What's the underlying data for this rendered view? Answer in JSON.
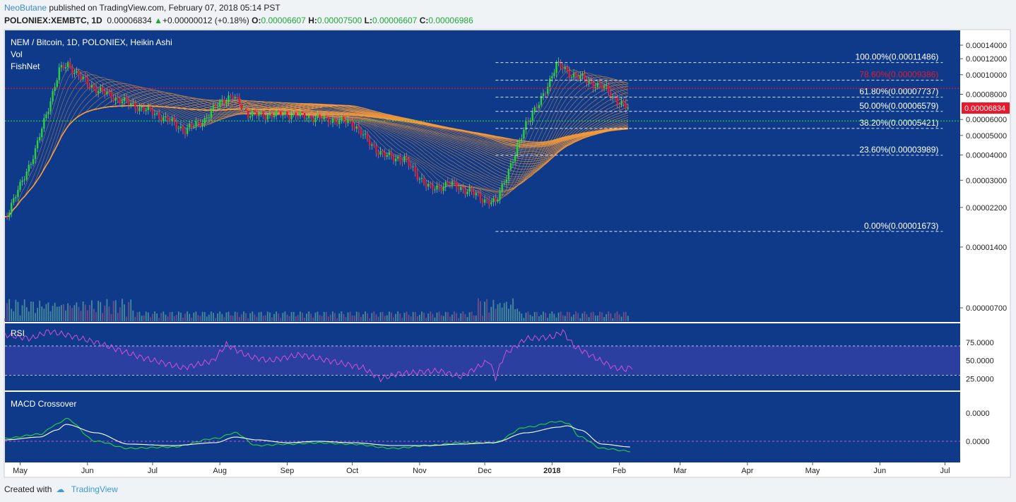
{
  "header": {
    "author": "NeoButane",
    "published_text": " published on TradingView.com, February 07, 2018 05:14 PST",
    "symbol": "POLONIEX:XEMBTC, 1D",
    "last_price": "0.00006834",
    "change_arrow": "▲",
    "change": "+0.00000012 (+0.18%)",
    "o_label": "O:",
    "o_value": "0.00006607",
    "h_label": "H:",
    "h_value": "0.00007500",
    "l_label": "L:",
    "l_value": "0.00006607",
    "c_label": "C:",
    "c_value": "0.00006986"
  },
  "legend": {
    "title": "NEM / Bitcoin, 1D, POLONIEX, Heikin Ashi",
    "vol": "Vol",
    "fishnet": "FishNet",
    "rsi": "RSI",
    "macd": "MACD Crossover"
  },
  "footer": {
    "created_with": "Created with",
    "brand": "TradingView"
  },
  "colors": {
    "pane_bg": "#0f3a8a",
    "up": "#2ad23a",
    "down": "#e8192c",
    "ribbon": "#f59a3a",
    "rsi_line": "#d24fd8",
    "rsi_band": "#2a3fa0",
    "macd_line": "#2ad23a",
    "signal_line": "#ffffff",
    "resistance": "#e8192c",
    "support": "#2ad23a",
    "price_tag": "#e8192c"
  },
  "chart_data": [
    {
      "type": "candlestick",
      "title": "NEM / Bitcoin, 1D, POLONIEX, Heikin Ashi",
      "scale": "log",
      "x_labels": [
        "May",
        "Jun",
        "Jul",
        "Aug",
        "Sep",
        "Oct",
        "Nov",
        "Dec",
        "2018",
        "Feb",
        "Mar",
        "Apr",
        "May",
        "Jun",
        "Jul"
      ],
      "y_ticks": [
        "0.00014000",
        "0.00012000",
        "0.00010000",
        "0.00008000",
        "0.00006000",
        "0.00005000",
        "0.00004000",
        "0.00003000",
        "0.00002200",
        "0.00001400",
        "0.00000700"
      ],
      "y_tick_values": [
        0.00014,
        0.00012,
        0.0001,
        8e-05,
        6e-05,
        5e-05,
        4e-05,
        3e-05,
        2.2e-05,
        1.4e-05,
        7e-06
      ],
      "price_series": {
        "x": [
          "2017-04-24",
          "2017-05-01",
          "2017-05-08",
          "2017-05-15",
          "2017-05-19",
          "2017-05-23",
          "2017-06-01",
          "2017-06-10",
          "2017-06-20",
          "2017-07-01",
          "2017-07-10",
          "2017-07-16",
          "2017-07-25",
          "2017-08-02",
          "2017-08-07",
          "2017-08-14",
          "2017-08-20",
          "2017-09-01",
          "2017-09-10",
          "2017-09-20",
          "2017-10-01",
          "2017-10-08",
          "2017-10-15",
          "2017-10-25",
          "2017-11-01",
          "2017-11-06",
          "2017-11-15",
          "2017-11-25",
          "2017-12-01",
          "2017-12-06",
          "2017-12-10",
          "2017-12-15",
          "2017-12-20",
          "2017-12-26",
          "2018-01-03",
          "2018-01-06",
          "2018-01-10",
          "2018-01-15",
          "2018-01-20",
          "2018-01-26",
          "2018-02-01",
          "2018-02-05"
        ],
        "close": [
          1.95e-05,
          2.8e-05,
          4.2e-05,
          7.5e-05,
          0.000105,
          0.000112,
          9e-05,
          8e-05,
          7.2e-05,
          6.5e-05,
          5.8e-05,
          5.3e-05,
          6e-05,
          7.5e-05,
          7.8e-05,
          6.4e-05,
          6.3e-05,
          6.4e-05,
          6.2e-05,
          6e-05,
          5.8e-05,
          4.7e-05,
          4e-05,
          3.8e-05,
          3.1e-05,
          2.7e-05,
          2.9e-05,
          2.6e-05,
          2.4e-05,
          2.3e-05,
          3e-05,
          4e-05,
          5.8e-05,
          7.1e-05,
          0.000112,
          0.000108,
          0.0001,
          9.6e-05,
          9e-05,
          8.5e-05,
          7.2e-05,
          6.8e-05
        ]
      },
      "fibonacci": [
        {
          "level": "100.00%",
          "value": "0.00011486"
        },
        {
          "level": "78.60%",
          "value": "0.00009386"
        },
        {
          "level": "61.80%",
          "value": "0.00007737"
        },
        {
          "level": "50.00%",
          "value": "0.00006579"
        },
        {
          "level": "38.20%",
          "value": "0.00005421"
        },
        {
          "level": "23.60%",
          "value": "0.00003989"
        },
        {
          "level": "0.00%",
          "value": "0.00001673"
        }
      ],
      "resistance_line": 8.55e-05,
      "support_line": 5.9e-05,
      "current_price_label": "0.00006834",
      "current_price": 6.834e-05
    },
    {
      "type": "line",
      "name": "RSI",
      "y_ticks": [
        "75.0000",
        "50.0000",
        "25.0000"
      ],
      "y_tick_values": [
        75,
        50,
        25
      ],
      "band": [
        30,
        70
      ],
      "x": [
        "2017-04-24",
        "2017-05-06",
        "2017-05-14",
        "2017-05-21",
        "2017-06-05",
        "2017-06-25",
        "2017-07-15",
        "2017-07-29",
        "2017-08-04",
        "2017-08-14",
        "2017-08-24",
        "2017-09-07",
        "2017-09-20",
        "2017-10-06",
        "2017-10-14",
        "2017-10-22",
        "2017-11-04",
        "2017-11-10",
        "2017-11-20",
        "2017-12-03",
        "2017-12-06",
        "2017-12-10",
        "2017-12-20",
        "2018-01-01",
        "2018-01-06",
        "2018-01-11",
        "2018-01-20",
        "2018-01-30",
        "2018-02-04",
        "2018-02-07"
      ],
      "values": [
        85,
        80,
        90,
        86,
        75,
        55,
        40,
        50,
        72,
        56,
        50,
        58,
        50,
        40,
        25,
        32,
        35,
        36,
        28,
        50,
        26,
        58,
        80,
        82,
        90,
        70,
        55,
        40,
        38,
        42
      ]
    },
    {
      "type": "line",
      "name": "MACD Crossover",
      "y_ticks": [
        "0.0000",
        "0.0000"
      ],
      "y_tick_values": [
        2e-06,
        0
      ],
      "x": [
        "2017-04-24",
        "2017-05-10",
        "2017-05-18",
        "2017-05-22",
        "2017-06-05",
        "2017-06-20",
        "2017-07-10",
        "2017-07-30",
        "2017-08-08",
        "2017-08-18",
        "2017-09-01",
        "2017-09-15",
        "2017-10-01",
        "2017-10-20",
        "2017-11-05",
        "2017-11-20",
        "2017-12-05",
        "2017-12-20",
        "2018-01-04",
        "2018-01-08",
        "2018-01-14",
        "2018-01-24",
        "2018-02-06"
      ],
      "macd": [
        2e-07,
        5e-07,
        1.2e-06,
        1.6e-06,
        0.0,
        -5e-07,
        -4e-07,
        2e-07,
        6e-07,
        -3e-07,
        -2e-07,
        -1e-07,
        -2e-07,
        -5e-07,
        -3e-07,
        -1e-07,
        -1e-07,
        1e-06,
        1.4e-06,
        1.3e-06,
        3e-07,
        -5e-07,
        -7e-07
      ],
      "signal": [
        1e-07,
        3e-07,
        8e-07,
        1.2e-06,
        6e-07,
        -2e-07,
        -3e-07,
        -1e-07,
        3e-07,
        1e-07,
        -1e-07,
        0.0,
        -1e-07,
        -3e-07,
        -3e-07,
        -2e-07,
        -1e-07,
        6e-07,
        1e-06,
        1.1e-06,
        8e-07,
        -2e-07,
        -4e-07
      ]
    }
  ]
}
